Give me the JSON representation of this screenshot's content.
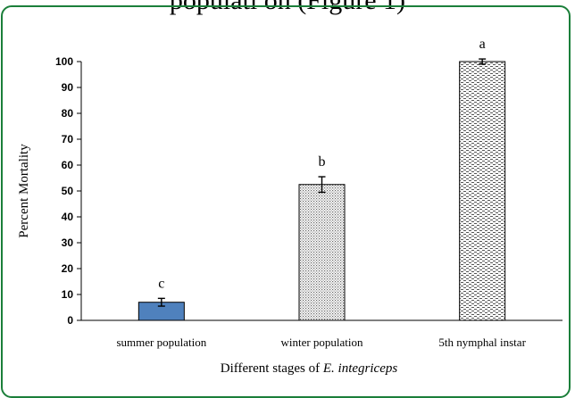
{
  "page": {
    "caption_fragment": "populati on (Figure 1)"
  },
  "chart_data": {
    "type": "bar",
    "title": "",
    "xlabel_prefix": "Different stages of ",
    "xlabel_italic": "E. integriceps",
    "ylabel": "Percent Mortality",
    "ylim": [
      0,
      100
    ],
    "yticks": [
      0,
      10,
      20,
      30,
      40,
      50,
      60,
      70,
      80,
      90,
      100
    ],
    "categories": [
      "summer population",
      "winter population",
      "5th nymphal instar"
    ],
    "values": [
      7,
      52.5,
      100
    ],
    "errors": [
      1.5,
      3,
      1
    ],
    "significance_letters": [
      "c",
      "b",
      "a"
    ],
    "bar_fills": [
      "solid-blue",
      "dotted",
      "dashed"
    ],
    "colors": {
      "summer_bar": "#4f81bd",
      "frame": "#1b7f3a",
      "axis": "#000000"
    },
    "grid": false,
    "legend": "none"
  }
}
